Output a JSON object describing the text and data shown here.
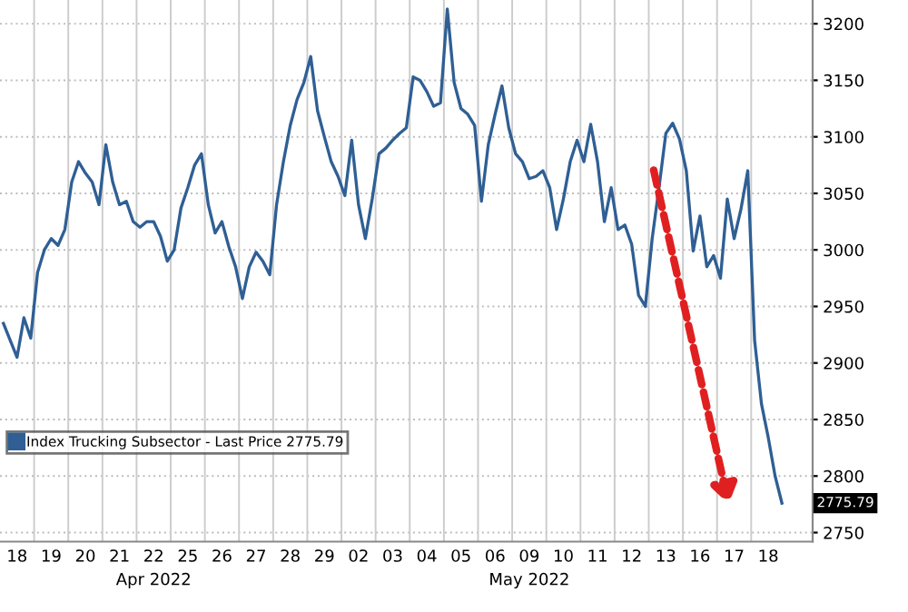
{
  "chart_data": {
    "type": "line",
    "categories": [
      null,
      null,
      "18",
      null,
      null,
      null,
      null,
      "19",
      null,
      null,
      null,
      null,
      "20",
      null,
      null,
      null,
      null,
      "21",
      null,
      null,
      null,
      null,
      "22\nApr 2022",
      null,
      null,
      null,
      null,
      "25",
      null,
      null,
      null,
      null,
      "26",
      null,
      null,
      null,
      null,
      "27",
      null,
      null,
      null,
      null,
      "28",
      null,
      null,
      null,
      null,
      "29",
      null,
      null,
      null,
      null,
      "02",
      null,
      null,
      null,
      null,
      "03",
      null,
      null,
      null,
      null,
      "04",
      null,
      null,
      null,
      null,
      "05",
      null,
      null,
      null,
      null,
      "06",
      null,
      null,
      null,
      null,
      "09\nMay 2022",
      null,
      null,
      null,
      null,
      "10",
      null,
      null,
      null,
      null,
      "11",
      null,
      null,
      null,
      null,
      "12",
      null,
      null,
      null,
      null,
      "13",
      null,
      null,
      null,
      null,
      "16",
      null,
      null,
      null,
      null,
      "17",
      null,
      null,
      null,
      null,
      "18",
      null,
      null
    ],
    "series": [
      {
        "name": "Index Trucking Subsector - Last Price 2775.79",
        "color": "#2f5f94",
        "values": [
          2935,
          2920,
          2905,
          2940,
          2922,
          2980,
          3000,
          3010,
          3004,
          3018,
          3060,
          3078,
          3068,
          3060,
          3040,
          3093,
          3060,
          3040,
          3043,
          3025,
          3020,
          3025,
          3025,
          3012,
          2990,
          3000,
          3037,
          3055,
          3075,
          3085,
          3040,
          3015,
          3025,
          3003,
          2985,
          2957,
          2985,
          2998,
          2990,
          2978,
          3040,
          3078,
          3110,
          3133,
          3148,
          3171,
          3123,
          3100,
          3078,
          3065,
          3048,
          3097,
          3040,
          3010,
          3045,
          3085,
          3090,
          3097,
          3103,
          3108,
          3153,
          3150,
          3140,
          3127,
          3130,
          3213,
          3148,
          3125,
          3120,
          3110,
          3043,
          3093,
          3120,
          3145,
          3108,
          3085,
          3078,
          3063,
          3065,
          3070,
          3055,
          3018,
          3045,
          3078,
          3097,
          3078,
          3111,
          3078,
          3025,
          3055,
          3018,
          3022,
          3005,
          2960,
          2950,
          3010,
          3055,
          3103,
          3112,
          3098,
          3070,
          2999,
          3030,
          2985,
          2995,
          2975,
          3045,
          3010,
          3036,
          3070,
          2920,
          2864,
          2834,
          2800,
          2776
        ]
      }
    ],
    "ylim": [
      2742,
      3221
    ],
    "yticks": [
      2750,
      2800,
      2850,
      2900,
      2950,
      3000,
      3050,
      3100,
      3150,
      3200
    ],
    "annotations": [
      "2775.79"
    ],
    "grid": true,
    "legend": "bottom left",
    "marker": "none",
    "line_style": "solid"
  }
}
